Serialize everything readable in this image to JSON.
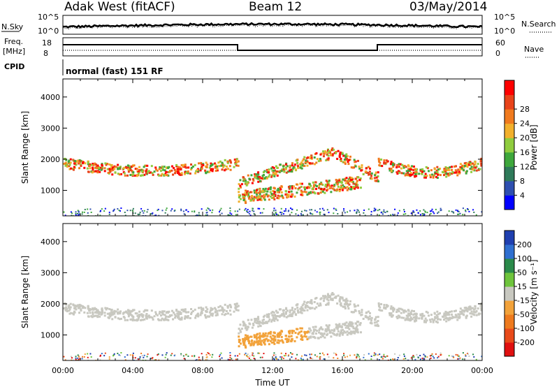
{
  "header": {
    "title": "Adak West (fitACF)",
    "beam": "Beam 12",
    "date": "03/May/2014"
  },
  "noise_panel": {
    "left_label": "N.Sky",
    "right_label": "N.Search",
    "left_ticks": [
      "10^5",
      "10^0"
    ],
    "right_ticks": [
      "10^5",
      "10^0"
    ]
  },
  "freq_panel": {
    "label_top": "Freq.",
    "label_unit": "[MHz]",
    "left_ticks": [
      "18",
      "8"
    ],
    "right_label": "Nave",
    "right_ticks": [
      "60",
      "0"
    ],
    "freq_segments": [
      {
        "from_hour": 0,
        "to_hour": 10,
        "level": "high"
      },
      {
        "from_hour": 10,
        "to_hour": 18,
        "level": "low"
      },
      {
        "from_hour": 18,
        "to_hour": 24,
        "level": "high"
      }
    ]
  },
  "cpid_panel": {
    "label": "CPID",
    "text": "normal (fast) 151 RF"
  },
  "chart_data": [
    {
      "type": "heatmap",
      "panel": "power",
      "ylabel": "Slant Range [km]",
      "yticks": [
        "1000",
        "2000",
        "3000",
        "4000"
      ],
      "ylim": [
        180,
        4580
      ],
      "colorbar_label": "Power [dB]",
      "colorbar_ticks": [
        "4",
        "8",
        "12",
        "16",
        "20",
        "24",
        "28"
      ],
      "colorbar_colors": [
        "#0000ff",
        "#2e4fb0",
        "#2f7a5a",
        "#3ea73c",
        "#8fcc3e",
        "#f2b02c",
        "#f07a1e",
        "#e8431a",
        "#ff0000"
      ]
    },
    {
      "type": "heatmap",
      "panel": "velocity",
      "ylabel": "Slant Range [km]",
      "yticks": [
        "1000",
        "2000",
        "3000",
        "4000"
      ],
      "ylim": [
        180,
        4580
      ],
      "xlabel": "Time UT",
      "xticks": [
        "00:00",
        "04:00",
        "08:00",
        "12:00",
        "16:00",
        "20:00",
        "00:00"
      ],
      "colorbar_label": "Velocity [m s⁻¹]",
      "colorbar_ticks": [
        "200",
        "100",
        "50",
        "15",
        "-15",
        "-50",
        "-100",
        "-200"
      ],
      "colorbar_colors": [
        "#1f3fb0",
        "#2f6fd0",
        "#2a8a4a",
        "#6ec43c",
        "#c8c8c0",
        "#f2a23a",
        "#ee7a1e",
        "#e84a1a",
        "#e01010"
      ]
    }
  ]
}
